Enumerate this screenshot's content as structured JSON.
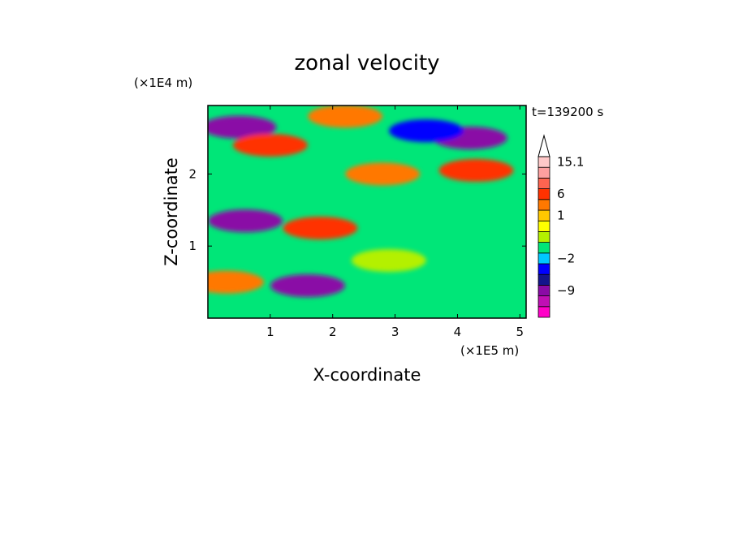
{
  "chart_data": {
    "type": "heatmap",
    "title": "zonal velocity",
    "xlabel": "X-coordinate",
    "ylabel": "Z-coordinate",
    "x_unit": "(×1E5 m)",
    "y_unit": "(×1E4 m)",
    "time_label": "t=139200 s",
    "xlim": [
      0.0,
      5.1
    ],
    "ylim": [
      0.0,
      2.95
    ],
    "x_ticks": [
      1,
      2,
      3,
      4,
      5
    ],
    "y_ticks": [
      1,
      2
    ],
    "colorbar": {
      "labels": [
        {
          "text": "15.1",
          "value": 15.1
        },
        {
          "text": "6",
          "value": 6
        },
        {
          "text": "1",
          "value": 1
        },
        {
          "text": "−2",
          "value": -2
        },
        {
          "text": "−9",
          "value": -9
        }
      ],
      "levels": [
        {
          "color": "#ff00c8",
          "value": -13
        },
        {
          "color": "#c00fb4",
          "value": -11
        },
        {
          "color": "#8a0aa6",
          "value": -9
        },
        {
          "color": "#14148c",
          "value": -6
        },
        {
          "color": "#0000ff",
          "value": -3
        },
        {
          "color": "#00c8ff",
          "value": -2
        },
        {
          "color": "#00e678",
          "value": -1
        },
        {
          "color": "#b4f000",
          "value": 0
        },
        {
          "color": "#ffff00",
          "value": 0.5
        },
        {
          "color": "#ffc800",
          "value": 1
        },
        {
          "color": "#ff7800",
          "value": 3
        },
        {
          "color": "#ff3200",
          "value": 6
        },
        {
          "color": "#ff6450",
          "value": 9
        },
        {
          "color": "#ffa0a0",
          "value": 12
        },
        {
          "color": "#ffc8c8",
          "value": 15.1
        }
      ]
    },
    "features": [
      {
        "x": 0.5,
        "z": 2.65,
        "value": -8
      },
      {
        "x": 1.0,
        "z": 2.4,
        "value": 6
      },
      {
        "x": 0.6,
        "z": 1.35,
        "value": -8
      },
      {
        "x": 1.8,
        "z": 1.25,
        "value": 6
      },
      {
        "x": 4.3,
        "z": 2.05,
        "value": 6
      },
      {
        "x": 4.2,
        "z": 2.5,
        "value": -8
      },
      {
        "x": 3.5,
        "z": 2.6,
        "value": -3
      },
      {
        "x": 1.6,
        "z": 0.45,
        "value": -9
      },
      {
        "x": 2.8,
        "z": 2.0,
        "value": 3
      },
      {
        "x": 2.2,
        "z": 2.8,
        "value": 3
      },
      {
        "x": 0.3,
        "z": 0.5,
        "value": 3
      },
      {
        "x": 4.0,
        "z": 1.55,
        "value": -1
      },
      {
        "x": 2.9,
        "z": 0.8,
        "value": 0
      },
      {
        "x": 4.4,
        "z": 0.3,
        "value": -1
      }
    ]
  }
}
